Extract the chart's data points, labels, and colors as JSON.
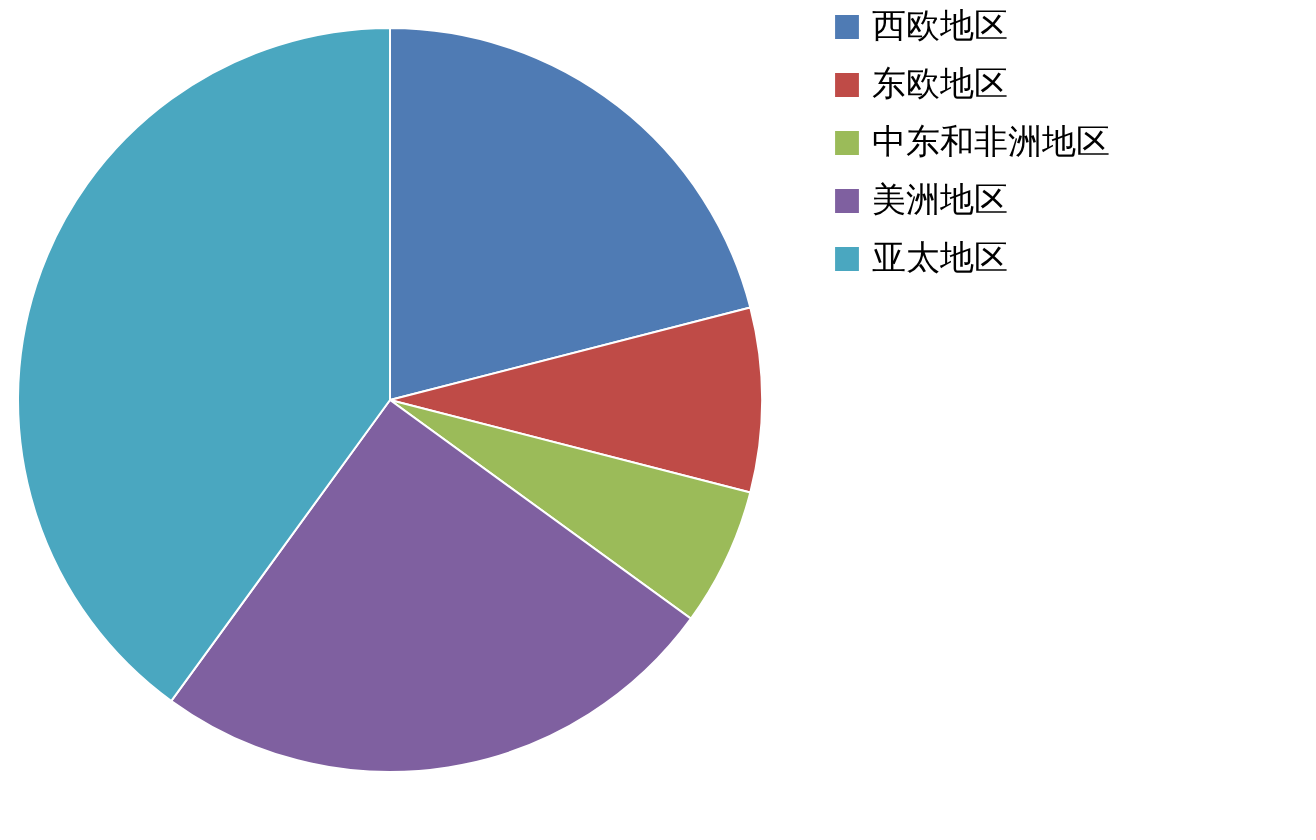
{
  "chart_data": {
    "type": "pie",
    "categories": [
      "西欧地区",
      "东欧地区",
      "中东和非洲地区",
      "美洲地区",
      "亚太地区"
    ],
    "values": [
      21,
      8,
      6,
      25,
      40
    ],
    "colors": [
      "#4f7bb4",
      "#bf4b47",
      "#9bbb59",
      "#7f60a0",
      "#4aa7c0"
    ],
    "legend": "right"
  }
}
